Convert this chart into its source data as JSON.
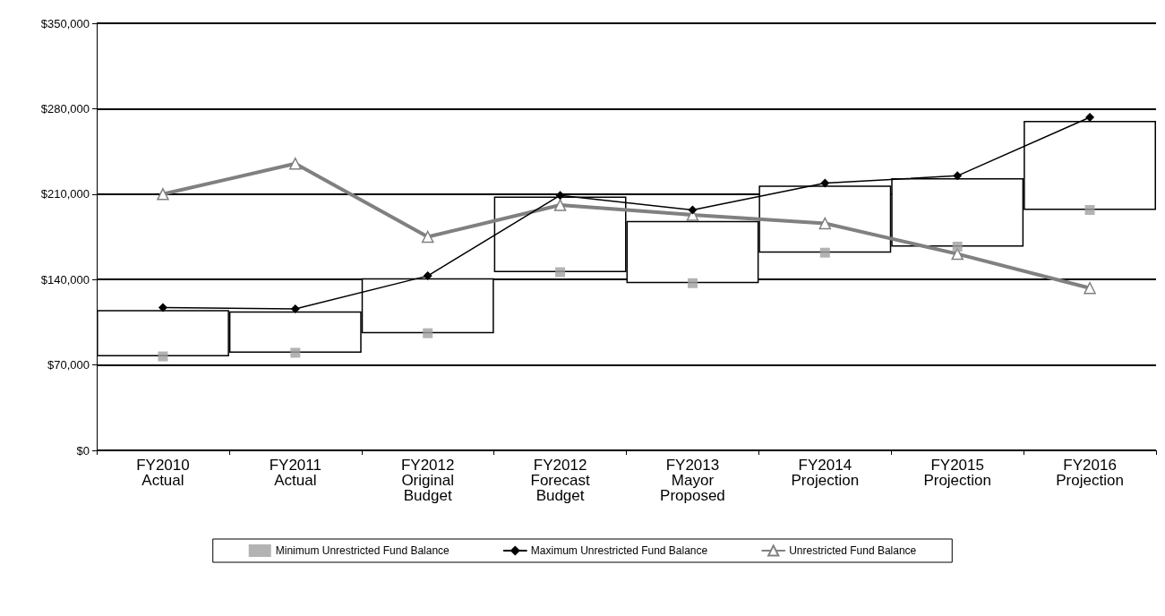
{
  "chart_data": {
    "type": "line",
    "categories": [
      "FY2010\nActual",
      "FY2011\nActual",
      "FY2012\nOriginal\nBudget",
      "FY2012\nForecast\nBudget",
      "FY2013\nMayor\nProposed",
      "FY2014\nProjection",
      "FY2015\nProjection",
      "FY2016\nProjection"
    ],
    "series": [
      {
        "type": "bar",
        "color": "#ffffff",
        "base": [
          77000,
          80000,
          96000,
          146000,
          137000,
          162000,
          167000,
          197000
        ],
        "values": [
          38000,
          34000,
          45000,
          62000,
          51000,
          55000,
          56000,
          73000
        ]
      },
      {
        "type": "scatter",
        "name": "Minimum Unrestricted Fund Balance",
        "color": "#a0a0a0",
        "marker": "square",
        "values": [
          77000,
          80000,
          96000,
          146000,
          137000,
          162000,
          167000,
          197000
        ]
      },
      {
        "name": "Maximum Unrestricted Fund Balance",
        "color": "#000000",
        "marker": "diamond",
        "values": [
          117000,
          116000,
          143000,
          209000,
          197000,
          219000,
          225000,
          273000
        ]
      },
      {
        "name": "Unrestricted Fund Balance",
        "color": "#808080",
        "marker": "triangle",
        "values": [
          210000,
          235000,
          175000,
          201000,
          193000,
          186000,
          161000,
          133000
        ]
      }
    ],
    "ylim": [
      0,
      350000
    ],
    "yticks": [
      {
        "value": 0,
        "label": "$0"
      },
      {
        "value": 70000,
        "label": "$70,000"
      },
      {
        "value": 140000,
        "label": "$140,000"
      },
      {
        "value": 210000,
        "label": "$210,000"
      },
      {
        "value": 280000,
        "label": "$280,000"
      },
      {
        "value": 350000,
        "label": "$350,000"
      }
    ],
    "grid": "y",
    "legend": "bottom"
  }
}
